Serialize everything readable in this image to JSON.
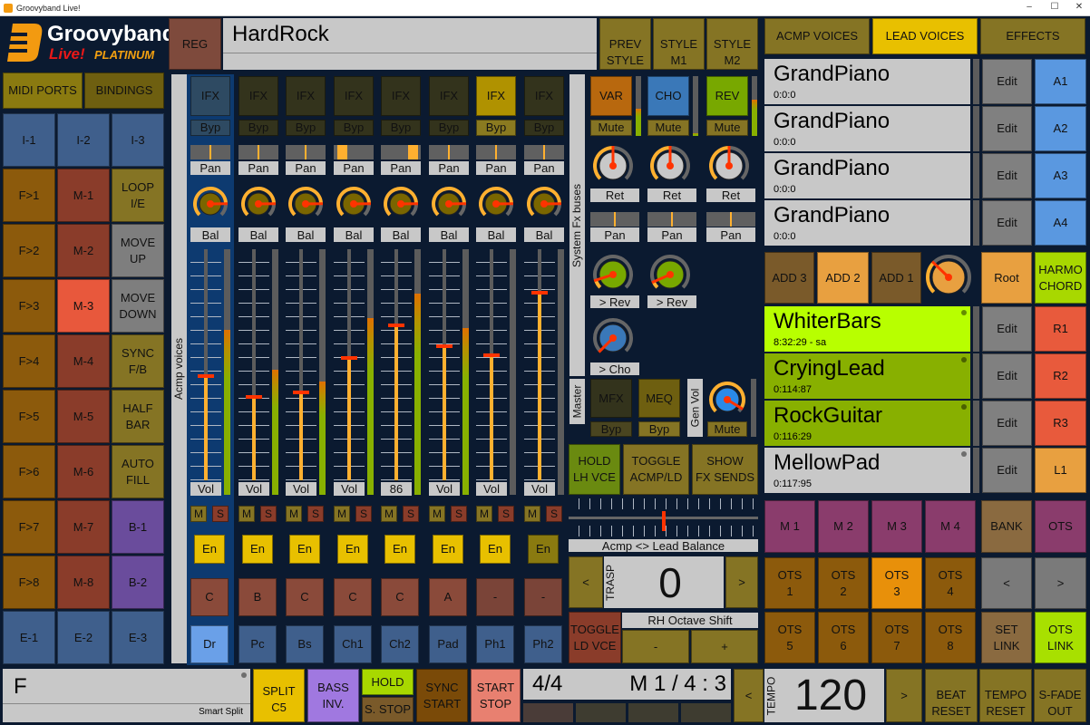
{
  "window": {
    "title": "Groovyband Live!",
    "minimize": "–",
    "maximize": "☐",
    "close": "✕"
  },
  "logo": {
    "name": "Groovyband",
    "sub1": "Live!",
    "sub2": "PLATINUM"
  },
  "top": {
    "midi_ports": "MIDI PORTS",
    "bindings": "BINDINGS",
    "reg": "REG",
    "style_name": "HardRock",
    "prev_style": "PREV\nSTYLE",
    "style_m1": "STYLE\nM1",
    "style_m2": "STYLE\nM2"
  },
  "left_grid": [
    [
      {
        "label": "I-1",
        "color": "#3f5f8c"
      },
      {
        "label": "I-2",
        "color": "#3f5f8c"
      },
      {
        "label": "I-3",
        "color": "#3f5f8c"
      }
    ],
    [
      {
        "label": "F>1",
        "color": "#8c5a0c"
      },
      {
        "label": "M-1",
        "color": "#8a3c2a"
      },
      {
        "label": "LOOP\nI/E",
        "color": "#857424"
      }
    ],
    [
      {
        "label": "F>2",
        "color": "#8c5a0c"
      },
      {
        "label": "M-2",
        "color": "#8a3c2a"
      },
      {
        "label": "MOVE\nUP",
        "color": "#7e7e7e"
      }
    ],
    [
      {
        "label": "F>3",
        "color": "#8c5a0c"
      },
      {
        "label": "M-3",
        "color": "#e8583c"
      },
      {
        "label": "MOVE\nDOWN",
        "color": "#7e7e7e"
      }
    ],
    [
      {
        "label": "F>4",
        "color": "#8c5a0c"
      },
      {
        "label": "M-4",
        "color": "#8a3c2a"
      },
      {
        "label": "SYNC\nF/B",
        "color": "#857424"
      }
    ],
    [
      {
        "label": "F>5",
        "color": "#8c5a0c"
      },
      {
        "label": "M-5",
        "color": "#8a3c2a"
      },
      {
        "label": "HALF\nBAR",
        "color": "#857424"
      }
    ],
    [
      {
        "label": "F>6",
        "color": "#8c5a0c"
      },
      {
        "label": "M-6",
        "color": "#8a3c2a"
      },
      {
        "label": "AUTO\nFILL",
        "color": "#857424"
      }
    ],
    [
      {
        "label": "F>7",
        "color": "#8c5a0c"
      },
      {
        "label": "M-7",
        "color": "#8a3c2a"
      },
      {
        "label": "B-1",
        "color": "#6a4c9c"
      }
    ],
    [
      {
        "label": "F>8",
        "color": "#8c5a0c"
      },
      {
        "label": "M-8",
        "color": "#8a3c2a"
      },
      {
        "label": "B-2",
        "color": "#6a4c9c"
      }
    ],
    [
      {
        "label": "E-1",
        "color": "#3f5f8c"
      },
      {
        "label": "E-2",
        "color": "#3f5f8c"
      },
      {
        "label": "E-3",
        "color": "#3f5f8c"
      }
    ]
  ],
  "acmp": {
    "section_label": "Acmp voices",
    "channels": [
      {
        "ifx": "IFX",
        "ifx_color": "#2e4a62",
        "byp": "Byp",
        "pan_label": "Pan",
        "pan": 0.5,
        "bal_label": "Bal",
        "bal": 0.83,
        "vol_label": "Vol",
        "volume": 0.45,
        "meter": 0.67,
        "mute": "M",
        "solo": "S",
        "enable": "En",
        "en_color": "#e8c000",
        "part": "C",
        "name": "Dr",
        "name_color": "#6aa0e8",
        "selected": true
      },
      {
        "ifx": "IFX",
        "ifx_color": "#33331c",
        "byp": "Byp",
        "pan_label": "Pan",
        "pan": 0.5,
        "bal_label": "Bal",
        "bal": 0.83,
        "vol_label": "Vol",
        "volume": 0.36,
        "meter": 0.51,
        "mute": "M",
        "solo": "S",
        "enable": "En",
        "en_color": "#e8c000",
        "part": "B",
        "name": "Pc",
        "name_color": "#3f5f8c"
      },
      {
        "ifx": "IFX",
        "ifx_color": "#33331c",
        "byp": "Byp",
        "pan_label": "Pan",
        "pan": 0.5,
        "bal_label": "Bal",
        "bal": 0.83,
        "vol_label": "Vol",
        "volume": 0.38,
        "meter": 0.46,
        "mute": "M",
        "solo": "S",
        "enable": "En",
        "en_color": "#e8c000",
        "part": "C",
        "name": "Bs",
        "name_color": "#3f5f8c"
      },
      {
        "ifx": "IFX",
        "ifx_color": "#33331c",
        "byp": "Byp",
        "pan_label": "Pan",
        "pan": 0.2,
        "bal_label": "Bal",
        "bal": 0.83,
        "vol_label": "Vol",
        "volume": 0.53,
        "meter": 0.72,
        "mute": "M",
        "solo": "S",
        "enable": "En",
        "en_color": "#e8c000",
        "part": "C",
        "name": "Ch1",
        "name_color": "#3f5f8c"
      },
      {
        "ifx": "IFX",
        "ifx_color": "#33331c",
        "byp": "Byp",
        "pan_label": "Pan",
        "pan": 0.8,
        "bal_label": "Bal",
        "bal": 0.83,
        "vol_label": "86",
        "volume": 0.67,
        "meter": 0.82,
        "mute": "M",
        "solo": "S",
        "enable": "En",
        "en_color": "#e8c000",
        "part": "C",
        "name": "Ch2",
        "name_color": "#3f5f8c"
      },
      {
        "ifx": "IFX",
        "ifx_color": "#33331c",
        "byp": "Byp",
        "pan_label": "Pan",
        "pan": 0.5,
        "bal_label": "Bal",
        "bal": 0.83,
        "vol_label": "Vol",
        "volume": 0.58,
        "meter": 0.68,
        "mute": "M",
        "solo": "S",
        "enable": "En",
        "en_color": "#e8c000",
        "part": "A",
        "name": "Pad",
        "name_color": "#3f5f8c"
      },
      {
        "ifx": "IFX",
        "ifx_color": "#b09200",
        "byp": "Byp",
        "pan_label": "Pan",
        "pan": 0.5,
        "bal_label": "Bal",
        "bal": 0.83,
        "vol_label": "Vol",
        "volume": 0.54,
        "meter": 0,
        "mute": "M",
        "solo": "S",
        "enable": "En",
        "en_color": "#e8c000",
        "part": "-",
        "name": "Ph1",
        "name_color": "#3f5f8c"
      },
      {
        "ifx": "IFX",
        "ifx_color": "#33331c",
        "byp": "Byp",
        "pan_label": "Pan",
        "pan": 0.5,
        "bal_label": "Bal",
        "bal": 0.83,
        "vol_label": "Vol",
        "volume": 0.81,
        "meter": 0,
        "mute": "M",
        "solo": "S",
        "enable": "En",
        "en_color": "#8a7a10",
        "part": "-",
        "name": "Ph2",
        "name_color": "#3f5f8c"
      }
    ]
  },
  "fx_buses": {
    "section_label": "System Fx buses",
    "buses": [
      {
        "label": "VAR",
        "color": "#b8680e",
        "mute": "Mute",
        "meter": 0.45,
        "ret_label": "Ret",
        "ret": 0.5,
        "pan_label": "Pan",
        "pan": 0.5,
        "send_label": "> Rev",
        "send": 0.1
      },
      {
        "label": "CHO",
        "color": "#3a78b8",
        "mute": "Mute",
        "meter": 0.05,
        "ret_label": "Ret",
        "ret": 0.5,
        "pan_label": "Pan",
        "pan": 0.5,
        "send_label": "> Rev",
        "send": 0.08
      },
      {
        "label": "REV",
        "color": "#78a800",
        "mute": "Mute",
        "meter": 0.6,
        "ret_label": "Ret",
        "ret": 0.5,
        "pan_label": "Pan",
        "pan": 0.5
      }
    ],
    "cho_send_label": "> Cho",
    "cho_send": 0.0
  },
  "master": {
    "section_label": "Master",
    "mfx": "MFX",
    "mfx_byp": "Byp",
    "meq": "MEQ",
    "meq_byp": "Byp",
    "gen_vol_label": "Gen Vol",
    "gen_vol": 0.95,
    "mute": "Mute"
  },
  "controls": {
    "hold_lh": "HOLD\nLH VCE",
    "toggle_acmp": "TOGGLE\nACMP/LD",
    "show_fx": "SHOW\nFX SENDS",
    "balance_label": "Acmp <> Lead Balance",
    "balance": 0.5,
    "trasp_prev": "<",
    "trasp_label": "TRASP",
    "trasp_value": "0",
    "trasp_next": ">",
    "toggle_ld": "TOGGLE\nLD VCE",
    "rh_octave_label": "RH Octave Shift",
    "rh_minus": "-",
    "rh_plus": "+"
  },
  "right_tabs": [
    {
      "label": "ACMP VOICES",
      "color": "#857424"
    },
    {
      "label": "LEAD VOICES",
      "color": "#e8c000"
    },
    {
      "label": "EFFECTS",
      "color": "#857424"
    }
  ],
  "acmp_voices": [
    {
      "name": "GrandPiano",
      "info": "0:0:0",
      "edit": "Edit",
      "slot": "A1"
    },
    {
      "name": "GrandPiano",
      "info": "0:0:0",
      "edit": "Edit",
      "slot": "A2"
    },
    {
      "name": "GrandPiano",
      "info": "0:0:0",
      "edit": "Edit",
      "slot": "A3"
    },
    {
      "name": "GrandPiano",
      "info": "0:0:0",
      "edit": "Edit",
      "slot": "A4"
    }
  ],
  "harmony": {
    "add3": "ADD 3",
    "add2": "ADD 2",
    "add1": "ADD 1",
    "knob": 0.33,
    "root": "Root",
    "harmo_chord": "HARMO\nCHORD"
  },
  "lead_voices": [
    {
      "name": "WhiterBars",
      "info": "8:32:29 - sa",
      "color": "#b8ff00",
      "edit": "Edit",
      "slot": "R1",
      "slot_color": "#e85a3c"
    },
    {
      "name": "CryingLead",
      "info": "0:114:87",
      "color": "#88b000",
      "edit": "Edit",
      "slot": "R2",
      "slot_color": "#e85a3c"
    },
    {
      "name": "RockGuitar",
      "info": "0:116:29",
      "color": "#88b000",
      "edit": "Edit",
      "slot": "R3",
      "slot_color": "#e85a3c"
    },
    {
      "name": "MellowPad",
      "info": "0:117:95",
      "color": "#c8c8c8",
      "edit": "Edit",
      "slot": "L1",
      "slot_color": "#e8a040"
    }
  ],
  "memories": [
    "M 1",
    "M 2",
    "M 3",
    "M 4"
  ],
  "bank": "BANK",
  "ots_toggle": "OTS",
  "ots": [
    {
      "label": "OTS\n1"
    },
    {
      "label": "OTS\n2"
    },
    {
      "label": "OTS\n3",
      "active": true
    },
    {
      "label": "OTS\n4"
    },
    {
      "label": "OTS\n5"
    },
    {
      "label": "OTS\n6"
    },
    {
      "label": "OTS\n7"
    },
    {
      "label": "OTS\n8"
    }
  ],
  "ots_prev": "<",
  "ots_next": ">",
  "set_link": "SET\nLINK",
  "ots_link": "OTS\nLINK",
  "bottom": {
    "split_note": "F",
    "smart_split": "Smart Split",
    "split": "SPLIT\nC5",
    "bass_inv": "BASS\nINV.",
    "hold": "HOLD",
    "s_stop": "S. STOP",
    "sync_start": "SYNC\nSTART",
    "start_stop": "START\nSTOP",
    "time_sig": "4/4",
    "position": "M 1 / 4 : 3",
    "tempo_prev": "<",
    "tempo_label": "TEMPO",
    "tempo": "120",
    "tempo_next": ">",
    "beat_reset": "BEAT\nRESET",
    "tempo_reset": "TEMPO\nRESET",
    "s_fade_out": "S-FADE\nOUT"
  }
}
